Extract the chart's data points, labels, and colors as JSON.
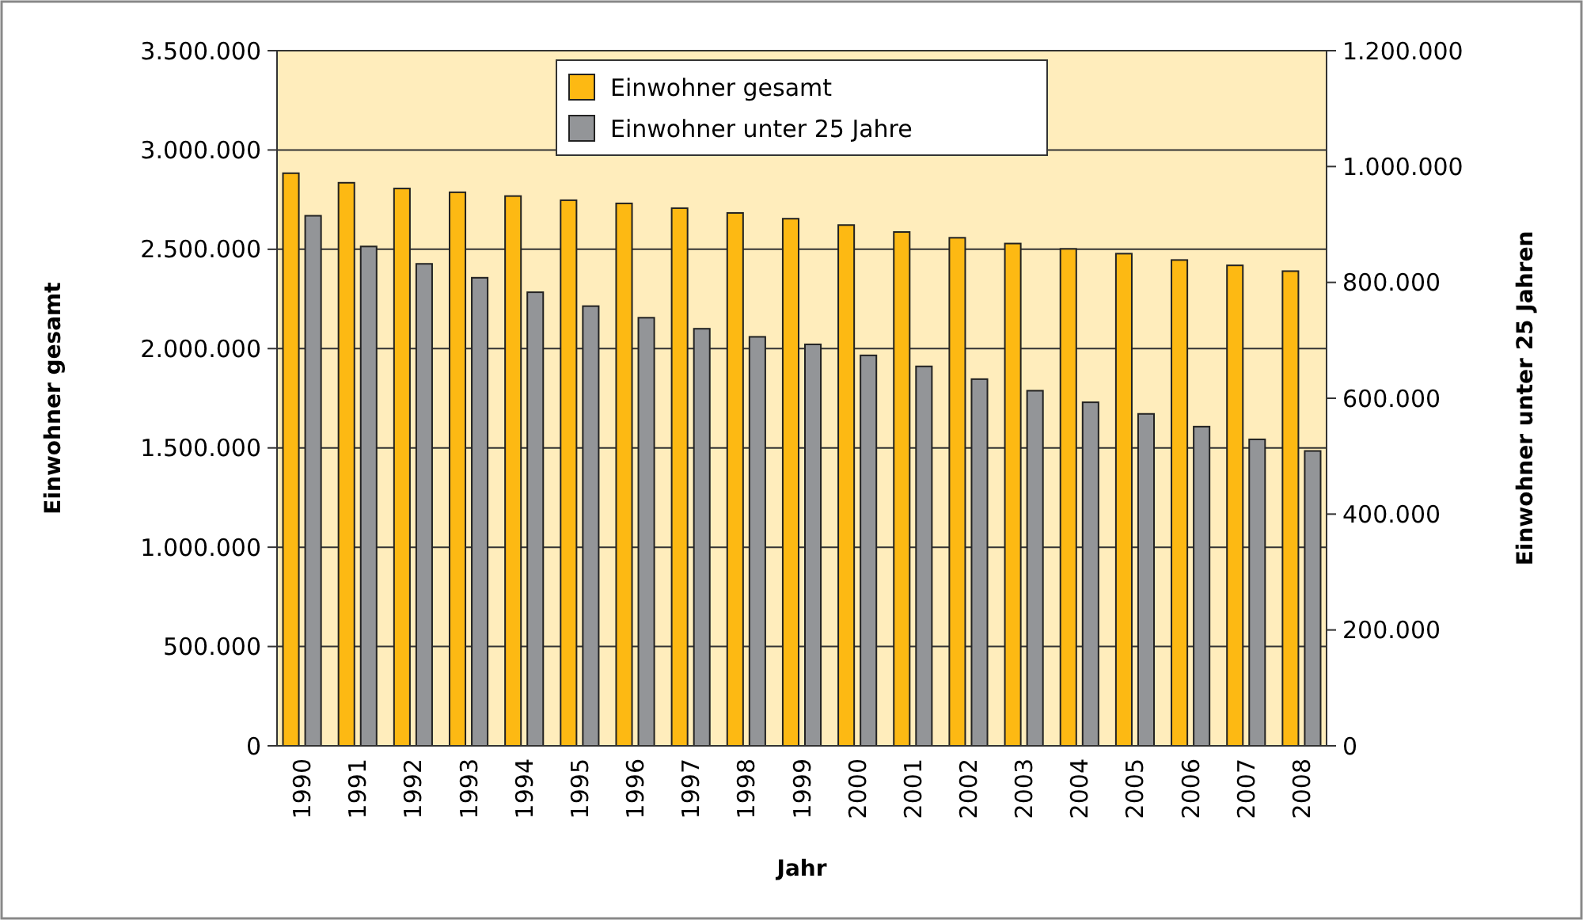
{
  "chart_data": {
    "type": "bar",
    "xlabel": "Jahr",
    "ylabel": "Einwohner gesamt",
    "y2label": "Einwohner unter 25 Jahren",
    "categories": [
      "1990",
      "1991",
      "1992",
      "1993",
      "1994",
      "1995",
      "1996",
      "1997",
      "1998",
      "1999",
      "2000",
      "2001",
      "2002",
      "2003",
      "2004",
      "2005",
      "2006",
      "2007",
      "2008"
    ],
    "series": [
      {
        "name": "Einwohner gesamt",
        "color": "#fdb913",
        "values": [
          2883000,
          2835000,
          2806000,
          2787000,
          2768000,
          2747000,
          2731000,
          2707000,
          2683000,
          2654000,
          2622000,
          2587000,
          2558000,
          2529000,
          2502000,
          2478000,
          2446000,
          2419000,
          2390000
        ]
      },
      {
        "name": "Einwohner unter 25 Jahre",
        "color": "#939598",
        "axis": "y2",
        "values": [
          915000,
          862000,
          832000,
          808000,
          783000,
          759000,
          739000,
          720000,
          706000,
          693000,
          674000,
          655000,
          633000,
          613000,
          593000,
          573000,
          551000,
          529000,
          509000
        ]
      }
    ],
    "ylim": [
      0,
      3500000
    ],
    "yticks": [
      {
        "value": 0,
        "label": "0"
      },
      {
        "value": 500000,
        "label": "500.000"
      },
      {
        "value": 1000000,
        "label": "1.000.000"
      },
      {
        "value": 1500000,
        "label": "1.500.000"
      },
      {
        "value": 2000000,
        "label": "2.000.000"
      },
      {
        "value": 2500000,
        "label": "2.500.000"
      },
      {
        "value": 3000000,
        "label": "3.000.000"
      },
      {
        "value": 3500000,
        "label": "3.500.000"
      }
    ],
    "y2lim": [
      0,
      1200000
    ],
    "y2ticks": [
      {
        "value": 0,
        "label": "0"
      },
      {
        "value": 200000,
        "label": "200.000"
      },
      {
        "value": 400000,
        "label": "400.000"
      },
      {
        "value": 600000,
        "label": "600.000"
      },
      {
        "value": 800000,
        "label": "800.000"
      },
      {
        "value": 1000000,
        "label": "1.000.000"
      },
      {
        "value": 1200000,
        "label": "1.200.000"
      }
    ],
    "grid": "y",
    "legend": "top"
  }
}
